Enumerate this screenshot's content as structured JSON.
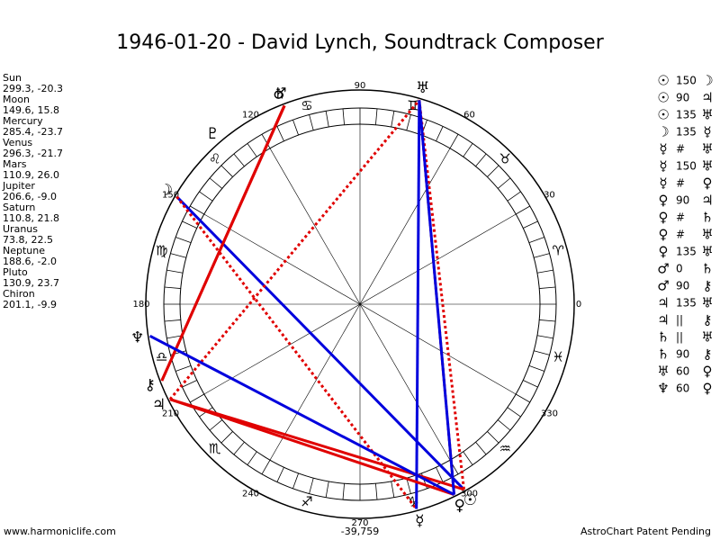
{
  "title": "1946-01-20 - David Lynch, Soundtrack Composer",
  "planets": [
    {
      "name": "Sun",
      "glyph": "☉",
      "position": "299.3, -20.3",
      "lon": 299.3
    },
    {
      "name": "Moon",
      "glyph": "☽",
      "position": "149.6, 15.8",
      "lon": 149.6
    },
    {
      "name": "Mercury",
      "glyph": "☿",
      "position": "285.4, -23.7",
      "lon": 285.4
    },
    {
      "name": "Venus",
      "glyph": "♀",
      "position": "296.3, -21.7",
      "lon": 296.3
    },
    {
      "name": "Mars",
      "glyph": "♂",
      "position": "110.9, 26.0",
      "lon": 110.9
    },
    {
      "name": "Jupiter",
      "glyph": "♃",
      "position": "206.6, -9.0",
      "lon": 206.6
    },
    {
      "name": "Saturn",
      "glyph": "♄",
      "position": "110.8, 21.8",
      "lon": 110.8
    },
    {
      "name": "Uranus",
      "glyph": "♅",
      "position": "73.8, 22.5",
      "lon": 73.8
    },
    {
      "name": "Neptune",
      "glyph": "♆",
      "position": "188.6, -2.0",
      "lon": 188.6
    },
    {
      "name": "Pluto",
      "glyph": "♇",
      "position": "130.9, 23.7",
      "lon": 130.9
    },
    {
      "name": "Chiron",
      "glyph": "⚷",
      "position": "201.1, -9.9",
      "lon": 201.1
    }
  ],
  "aspects": [
    {
      "p1": "☉",
      "aspect": "150",
      "p2": "☽"
    },
    {
      "p1": "☉",
      "aspect": "90",
      "p2": "♃"
    },
    {
      "p1": "☉",
      "aspect": "135",
      "p2": "♅"
    },
    {
      "p1": "☽",
      "aspect": "135",
      "p2": "☿"
    },
    {
      "p1": "☿",
      "aspect": "#",
      "p2": "♅"
    },
    {
      "p1": "☿",
      "aspect": "150",
      "p2": "♅"
    },
    {
      "p1": "☿",
      "aspect": "#",
      "p2": "♀"
    },
    {
      "p1": "♀",
      "aspect": "90",
      "p2": "♃"
    },
    {
      "p1": "♀",
      "aspect": "#",
      "p2": "♄"
    },
    {
      "p1": "♀",
      "aspect": "#",
      "p2": "♅"
    },
    {
      "p1": "♀",
      "aspect": "135",
      "p2": "♅"
    },
    {
      "p1": "♂",
      "aspect": "0",
      "p2": "♄"
    },
    {
      "p1": "♂",
      "aspect": "90",
      "p2": "⚷"
    },
    {
      "p1": "♃",
      "aspect": "135",
      "p2": "♅"
    },
    {
      "p1": "♃",
      "aspect": "||",
      "p2": "⚷"
    },
    {
      "p1": "♄",
      "aspect": "||",
      "p2": "♅"
    },
    {
      "p1": "♄",
      "aspect": "90",
      "p2": "⚷"
    },
    {
      "p1": "♅",
      "aspect": "60",
      "p2": "♀"
    },
    {
      "p1": "♆",
      "aspect": "60",
      "p2": "♀"
    }
  ],
  "aspect_colors": {
    "60": "#0000dd",
    "90": "#e00000",
    "135": "#e00000",
    "150": "#0000dd"
  },
  "aspect_dashed": [
    "135"
  ],
  "signs": [
    "♈",
    "♉",
    "♊",
    "♋",
    "♌",
    "♍",
    "♎",
    "♏",
    "♐",
    "♑",
    "♒",
    "♓"
  ],
  "degree_labels": [
    0,
    30,
    60,
    90,
    120,
    150,
    180,
    210,
    240,
    270,
    300,
    330
  ],
  "footer": {
    "left": "www.harmoniclife.com",
    "center": "-39,759",
    "right": "AstroChart Patent Pending"
  }
}
